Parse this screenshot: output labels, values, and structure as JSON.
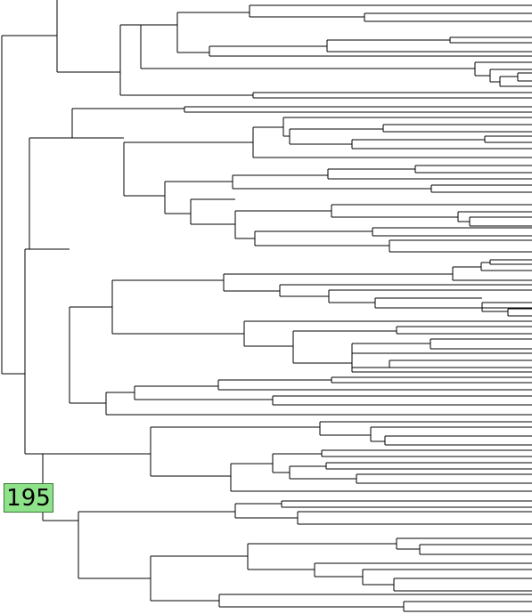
{
  "tree": {
    "highlighted_node": {
      "label": "195",
      "color": "#8ee28a"
    },
    "line_color": "#000000"
  }
}
